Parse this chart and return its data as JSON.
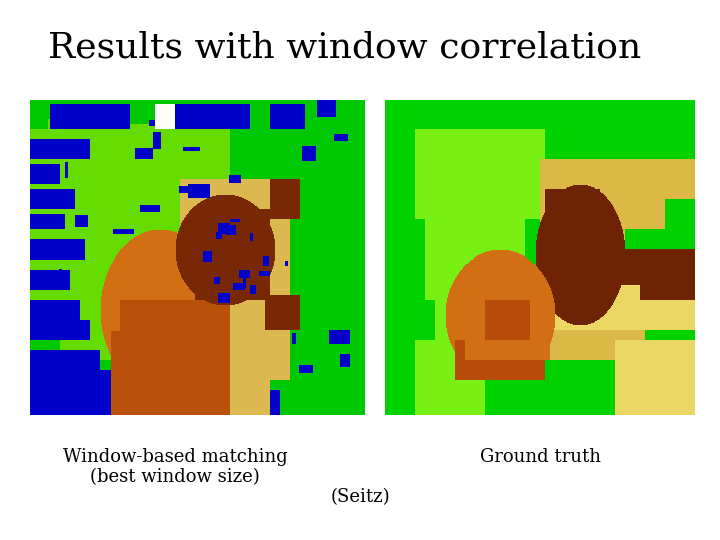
{
  "title": "Results with window correlation",
  "title_fontsize": 26,
  "background_color": "#ffffff",
  "label_left_line1": "Window-based matching",
  "label_left_line2": "(best window size)",
  "label_center": "(Seitz)",
  "label_right": "Ground truth",
  "label_fontsize": 13,
  "colors": {
    "bright_green": [
      0,
      200,
      0
    ],
    "lime_green": [
      100,
      220,
      0
    ],
    "blue": [
      0,
      0,
      200
    ],
    "orange": [
      210,
      110,
      20
    ],
    "dark_orange": [
      185,
      80,
      10
    ],
    "brown": [
      120,
      40,
      5
    ],
    "tan": [
      220,
      185,
      80
    ],
    "light_tan": [
      230,
      210,
      120
    ],
    "white": [
      255,
      255,
      255
    ],
    "gt_green": [
      0,
      210,
      0
    ],
    "gt_lime": [
      120,
      240,
      20
    ],
    "gt_orange": [
      210,
      110,
      20
    ],
    "gt_dark_orange": [
      185,
      75,
      10
    ],
    "gt_brown": [
      110,
      35,
      5
    ],
    "gt_tan": [
      220,
      185,
      70
    ],
    "gt_light_tan": [
      235,
      215,
      100
    ]
  }
}
